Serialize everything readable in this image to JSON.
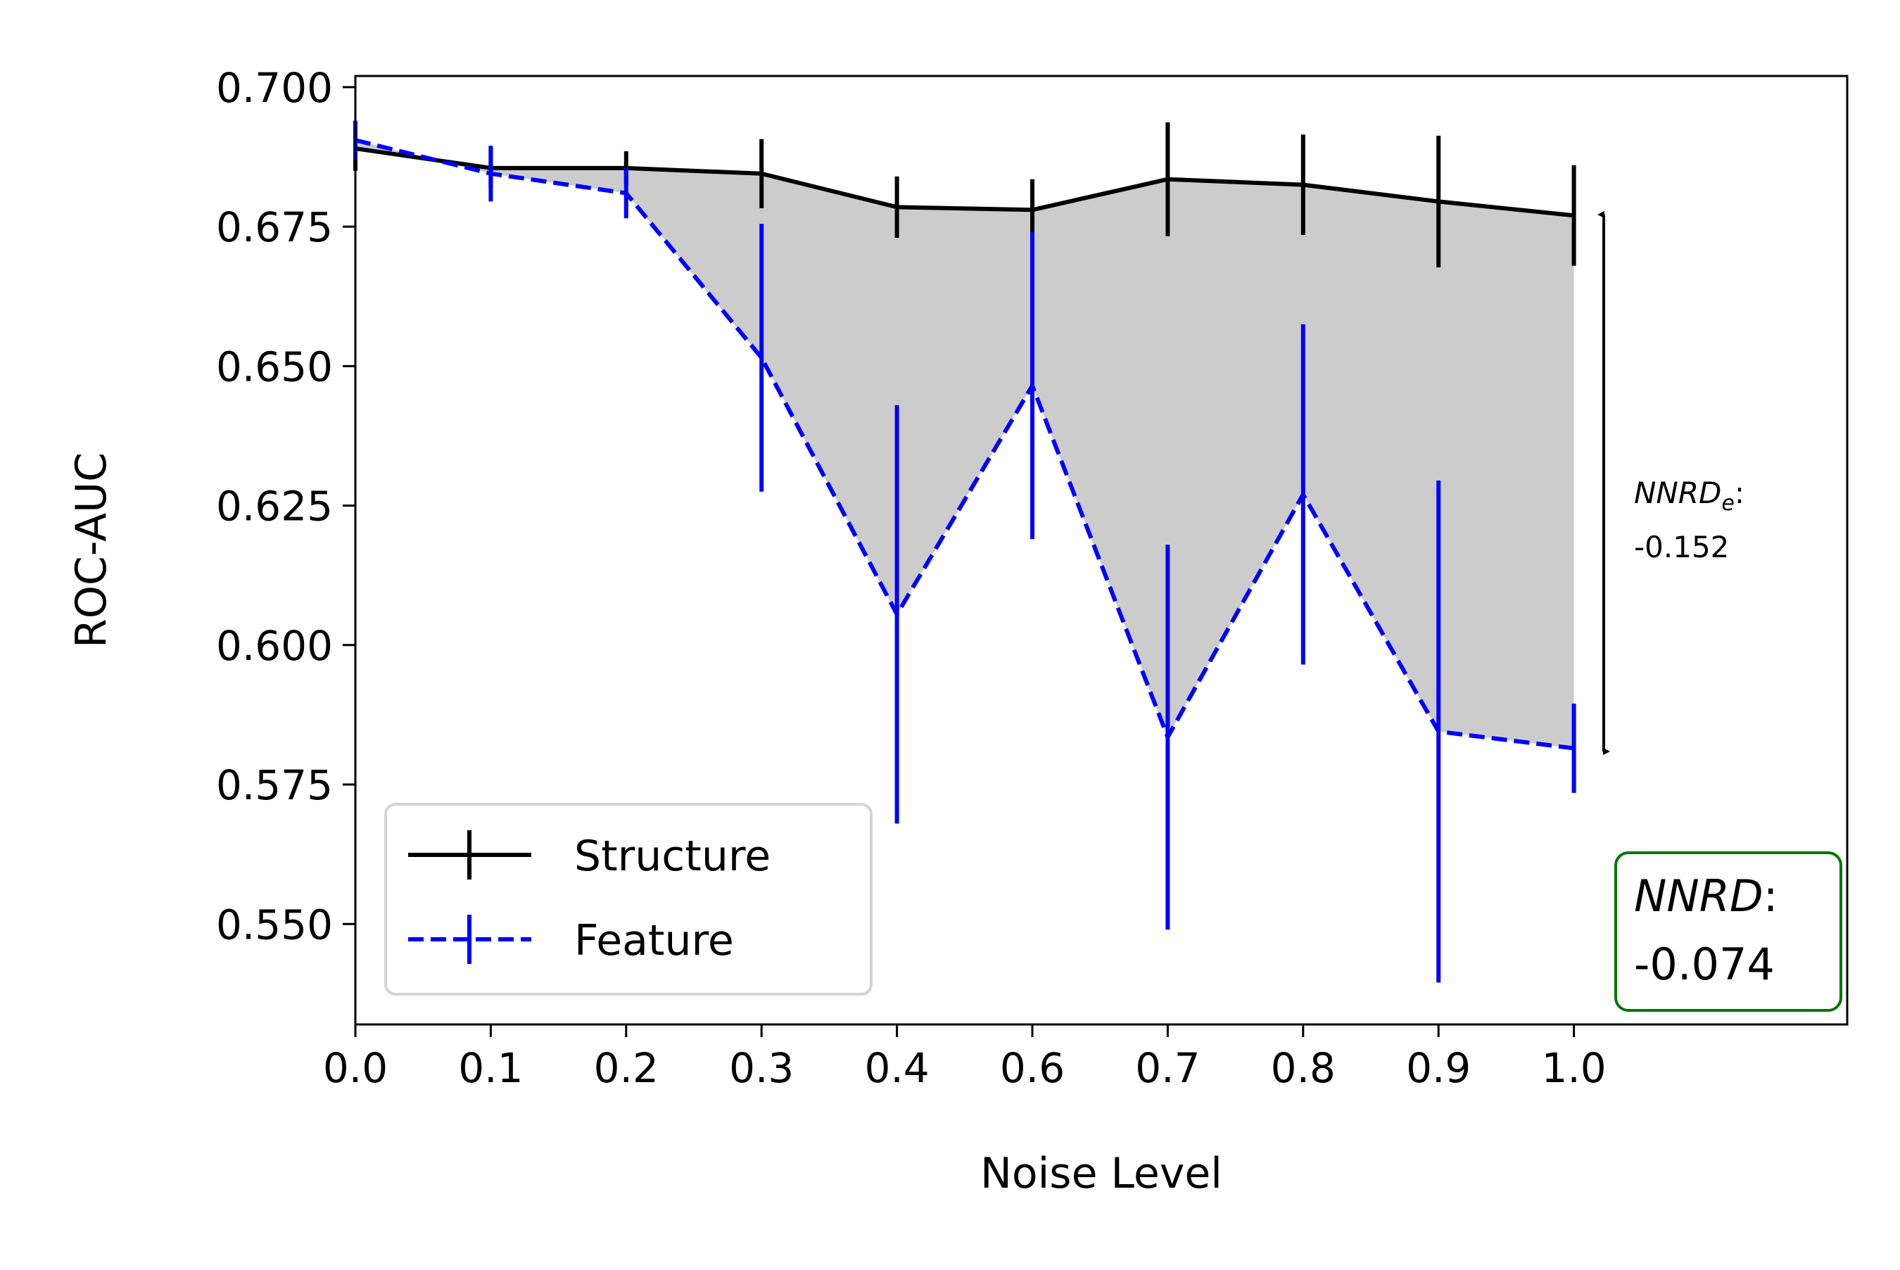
{
  "chart_data": {
    "type": "line",
    "xlabel": "Noise Level",
    "ylabel": "ROC-AUC",
    "x": [
      0.0,
      0.1,
      0.2,
      0.3,
      0.4,
      0.6,
      0.7,
      0.8,
      0.9,
      1.0
    ],
    "x_tick_labels": [
      "0.0",
      "0.1",
      "0.2",
      "0.3",
      "0.4",
      "0.6",
      "0.7",
      "0.8",
      "0.9",
      "1.0"
    ],
    "y_ticks": [
      0.55,
      0.575,
      0.6,
      0.625,
      0.65,
      0.675,
      0.7
    ],
    "y_tick_labels": [
      "0.550",
      "0.575",
      "0.600",
      "0.625",
      "0.650",
      "0.675",
      "0.700"
    ],
    "ylim": [
      0.532,
      0.702
    ],
    "grid": false,
    "legend_position": "bottom-left",
    "series": [
      {
        "name": "Structure",
        "color": "#000000",
        "style": "solid",
        "values": [
          0.689,
          0.6855,
          0.6855,
          0.6845,
          0.6785,
          0.678,
          0.6835,
          0.6825,
          0.6795,
          0.677
        ],
        "errors": [
          0.004,
          0.0035,
          0.003,
          0.0062,
          0.0055,
          0.0055,
          0.0102,
          0.009,
          0.0118,
          0.009
        ]
      },
      {
        "name": "Feature",
        "color": "#0000ff",
        "style": "dashed",
        "values": [
          0.6905,
          0.6845,
          0.681,
          0.6515,
          0.6055,
          0.6465,
          0.5835,
          0.627,
          0.5845,
          0.5815
        ],
        "errors": [
          0.0035,
          0.005,
          0.0045,
          0.024,
          0.0375,
          0.0275,
          0.0345,
          0.0305,
          0.045,
          0.008
        ]
      }
    ],
    "fill_between": {
      "color": "#cccccc",
      "between": [
        "Structure",
        "Feature"
      ]
    },
    "annotations": {
      "nnrd_e": {
        "label": "NNRD",
        "subscript": "e",
        "colon": ":",
        "value": "-0.152"
      },
      "nnrd": {
        "label": "NNRD",
        "colon": ":",
        "value": "-0.074",
        "box_color": "#007700"
      }
    }
  }
}
